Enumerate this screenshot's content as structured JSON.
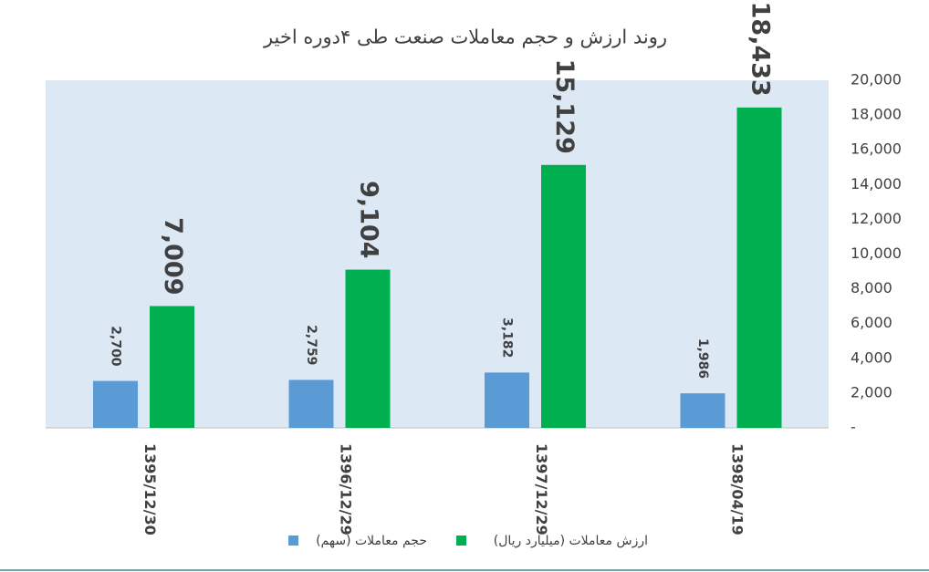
{
  "chart_data": {
    "type": "bar",
    "title": "روند ارزش و حجم معاملات صنعت طی ۴دوره اخیر",
    "categories": [
      "1395/12/30",
      "1396/12/29",
      "1397/12/29",
      "1398/04/19"
    ],
    "series": [
      {
        "name": "حجم معاملات (سهم)",
        "color": "#5b9bd5",
        "values": [
          2700,
          2759,
          3182,
          1986
        ],
        "value_labels": [
          "2,700",
          "2,759",
          "3,182",
          "1,986"
        ]
      },
      {
        "name": "ارزش معاملات (میلیارد ریال)",
        "color": "#00b050",
        "values": [
          7009,
          9104,
          15129,
          18433
        ],
        "value_labels": [
          "7,009",
          "9,104",
          "15,129",
          "18,433"
        ]
      }
    ],
    "ylim": [
      0,
      20000
    ],
    "yticks": [
      {
        "value": 0,
        "label": "-"
      },
      {
        "value": 2000,
        "label": "2,000"
      },
      {
        "value": 4000,
        "label": "4,000"
      },
      {
        "value": 6000,
        "label": "6,000"
      },
      {
        "value": 8000,
        "label": "8,000"
      },
      {
        "value": 10000,
        "label": "10,000"
      },
      {
        "value": 12000,
        "label": "12,000"
      },
      {
        "value": 14000,
        "label": "14,000"
      },
      {
        "value": 16000,
        "label": "16,000"
      },
      {
        "value": 18000,
        "label": "18,000"
      },
      {
        "value": 20000,
        "label": "20,000"
      }
    ],
    "legend": "bottom"
  }
}
